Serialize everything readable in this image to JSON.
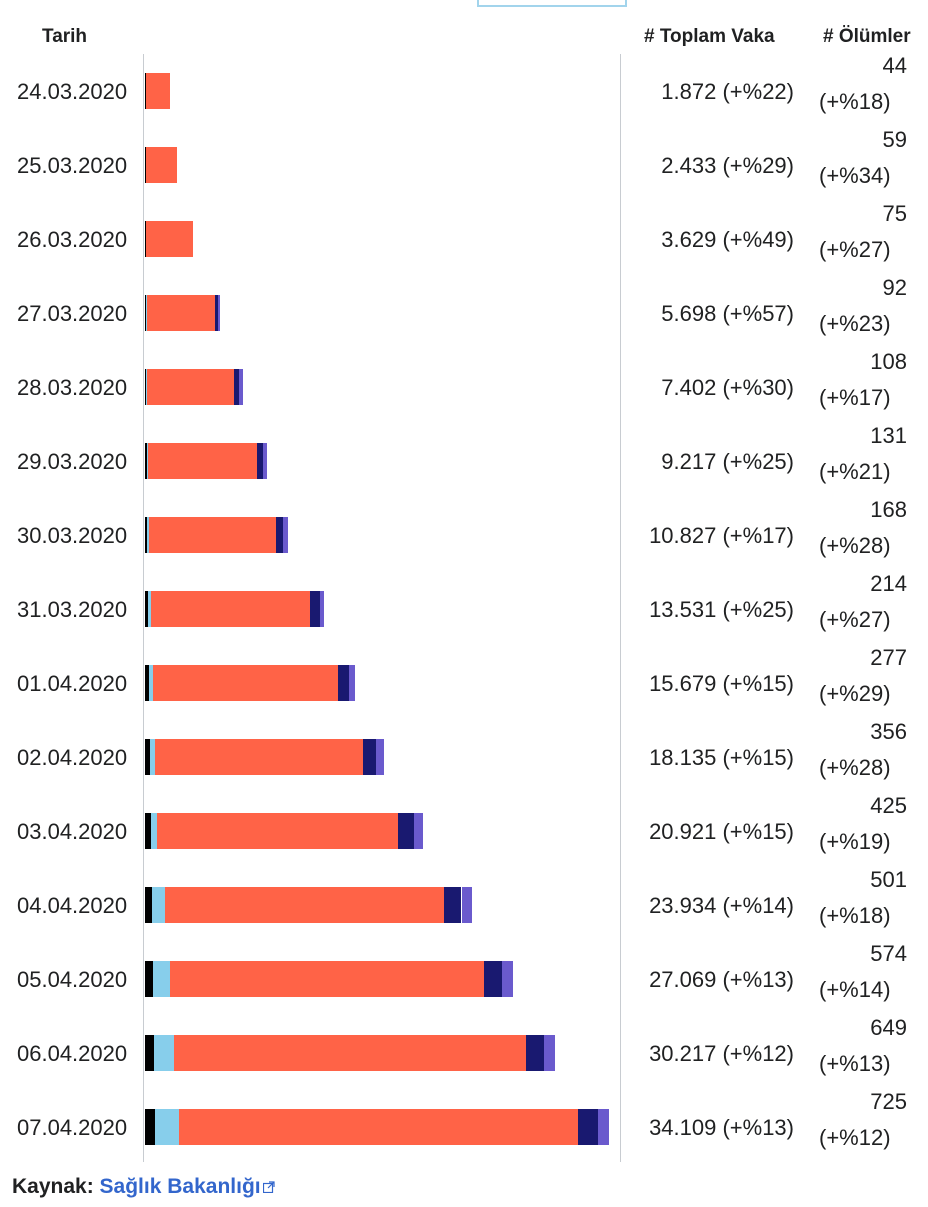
{
  "header": {
    "date_col": "Tarih",
    "cases_col": "# Toplam Vaka",
    "deaths_col": "# Ölümler"
  },
  "colors": {
    "deaths": "#000000",
    "recovered": "#87ceeb",
    "active": "#ff6347",
    "intensive_care": "#191970",
    "intubated": "#6a5acd"
  },
  "chart_data": {
    "type": "bar",
    "orientation": "horizontal",
    "stacked": true,
    "categories": [
      "24.03.2020",
      "25.03.2020",
      "26.03.2020",
      "27.03.2020",
      "28.03.2020",
      "29.03.2020",
      "30.03.2020",
      "31.03.2020",
      "01.04.2020",
      "02.04.2020",
      "03.04.2020",
      "04.04.2020",
      "05.04.2020",
      "06.04.2020",
      "07.04.2020"
    ],
    "series": [
      {
        "key": "deaths",
        "values": [
          44,
          59,
          75,
          92,
          108,
          131,
          168,
          214,
          277,
          356,
          425,
          501,
          574,
          649,
          725
        ]
      },
      {
        "key": "recovered",
        "values": [
          26,
          26,
          26,
          42,
          70,
          105,
          162,
          243,
          333,
          415,
          484,
          1042,
          1326,
          1582,
          1846
        ]
      },
      {
        "key": "active",
        "values": [
          1802,
          2348,
          3528,
          5149,
          6571,
          8246,
          9570,
          12045,
          14031,
          15764,
          18266,
          21136,
          23809,
          26629,
          30283
        ]
      },
      {
        "key": "intensive_care",
        "values": [
          0,
          0,
          0,
          260,
          344,
          445,
          568,
          725,
          847,
          979,
          1251,
          1311,
          1381,
          1415,
          1474
        ]
      },
      {
        "key": "intubated",
        "values": [
          0,
          0,
          0,
          155,
          309,
          290,
          359,
          304,
          451,
          576,
          646,
          789,
          842,
          783,
          822
        ]
      }
    ],
    "rows": [
      {
        "date": "24.03.2020",
        "cases": "1.872 (+%22)",
        "deaths": "44",
        "deaths_pct": "(+%18)"
      },
      {
        "date": "25.03.2020",
        "cases": "2.433 (+%29)",
        "deaths": "59",
        "deaths_pct": "(+%34)"
      },
      {
        "date": "26.03.2020",
        "cases": "3.629 (+%49)",
        "deaths": "75",
        "deaths_pct": "(+%27)"
      },
      {
        "date": "27.03.2020",
        "cases": "5.698 (+%57)",
        "deaths": "92",
        "deaths_pct": "(+%23)"
      },
      {
        "date": "28.03.2020",
        "cases": "7.402 (+%30)",
        "deaths": "108",
        "deaths_pct": "(+%17)"
      },
      {
        "date": "29.03.2020",
        "cases": "9.217 (+%25)",
        "deaths": "131",
        "deaths_pct": "(+%21)"
      },
      {
        "date": "30.03.2020",
        "cases": "10.827 (+%17)",
        "deaths": "168",
        "deaths_pct": "(+%28)"
      },
      {
        "date": "31.03.2020",
        "cases": "13.531 (+%25)",
        "deaths": "214",
        "deaths_pct": "(+%27)"
      },
      {
        "date": "01.04.2020",
        "cases": "15.679 (+%15)",
        "deaths": "277",
        "deaths_pct": "(+%29)"
      },
      {
        "date": "02.04.2020",
        "cases": "18.135 (+%15)",
        "deaths": "356",
        "deaths_pct": "(+%28)"
      },
      {
        "date": "03.04.2020",
        "cases": "20.921 (+%15)",
        "deaths": "425",
        "deaths_pct": "(+%19)"
      },
      {
        "date": "04.04.2020",
        "cases": "23.934 (+%14)",
        "deaths": "501",
        "deaths_pct": "(+%18)"
      },
      {
        "date": "05.04.2020",
        "cases": "27.069 (+%13)",
        "deaths": "574",
        "deaths_pct": "(+%14)"
      },
      {
        "date": "06.04.2020",
        "cases": "30.217 (+%12)",
        "deaths": "649",
        "deaths_pct": "(+%13)"
      },
      {
        "date": "07.04.2020",
        "cases": "34.109 (+%13)",
        "deaths": "725",
        "deaths_pct": "(+%12)"
      }
    ]
  },
  "source": {
    "label": "Kaynak:",
    "link_text": "Sağlık Bakanlığı",
    "link_icon": "external-link-icon"
  }
}
